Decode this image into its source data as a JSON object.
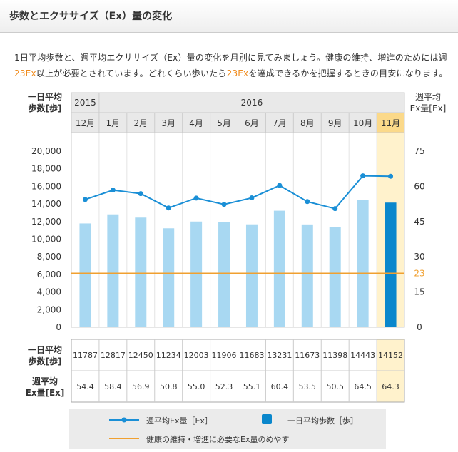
{
  "header": {
    "title": "歩数とエクササイズ（Ex）量の変化"
  },
  "intro": {
    "line1": "1日平均歩数と、週平均エクササイズ（Ex）量の変化を月別に見てみましょう。健康の維持、増進のためには週",
    "line2_hl": "23Ex",
    "line2_a": "以上が必要とされています。どれくらい歩いたら",
    "line2_hl2": "23Ex",
    "line2_b": "を達成できるかを把握するときの目安になります。"
  },
  "chart_data": {
    "type": "bar+line",
    "left_axis_label": [
      "一日平均",
      "歩数[歩]"
    ],
    "right_axis_label": [
      "週平均",
      "Ex量[Ex]"
    ],
    "years": [
      {
        "label": "2015",
        "span": 1
      },
      {
        "label": "2016",
        "span": 11
      }
    ],
    "categories": [
      "12月",
      "1月",
      "2月",
      "3月",
      "4月",
      "5月",
      "6月",
      "7月",
      "8月",
      "9月",
      "10月",
      "11月"
    ],
    "highlight_index": 11,
    "bars": {
      "name": "一日平均歩数［歩］",
      "values": [
        11787,
        12817,
        12450,
        11234,
        12003,
        11906,
        11683,
        13231,
        11673,
        11398,
        14443,
        14152
      ],
      "color": "#a8d8f2",
      "highlight_color": "#0a87cc"
    },
    "line": {
      "name": "週平均Ex量［Ex］",
      "values": [
        54.4,
        58.4,
        56.9,
        50.8,
        55.0,
        52.3,
        55.1,
        60.4,
        53.5,
        50.5,
        64.5,
        64.3
      ],
      "color": "#1a8fd6"
    },
    "reference": {
      "name": "健康の維持・増進に必要なEx量のめやす",
      "value": 23,
      "label": "23",
      "color": "#f0a030"
    },
    "y_left": {
      "min": 0,
      "max": 20000,
      "ticks": [
        "0",
        "2,000",
        "4,000",
        "6,000",
        "8,000",
        "10,000",
        "12,000",
        "14,000",
        "16,000",
        "18,000",
        "20,000"
      ]
    },
    "y_right": {
      "min": 0,
      "max": 75,
      "ticks": [
        "0",
        "15",
        "30",
        "45",
        "60",
        "75"
      ]
    },
    "table_rows": [
      {
        "label": [
          "一日平均",
          "歩数[歩]"
        ],
        "values": [
          "11787",
          "12817",
          "12450",
          "11234",
          "12003",
          "11906",
          "11683",
          "13231",
          "11673",
          "11398",
          "14443",
          "14152"
        ]
      },
      {
        "label": [
          "週平均",
          "Ex量[Ex]"
        ],
        "values": [
          "54.4",
          "58.4",
          "56.9",
          "50.8",
          "55.0",
          "52.3",
          "55.1",
          "60.4",
          "53.5",
          "50.5",
          "64.5",
          "64.3"
        ]
      }
    ]
  },
  "legend": {
    "line_label": "週平均Ex量［Ex］",
    "bar_label": "一日平均歩数［歩］",
    "ref_label": "健康の維持・増進に必要なEx量のめやす"
  }
}
